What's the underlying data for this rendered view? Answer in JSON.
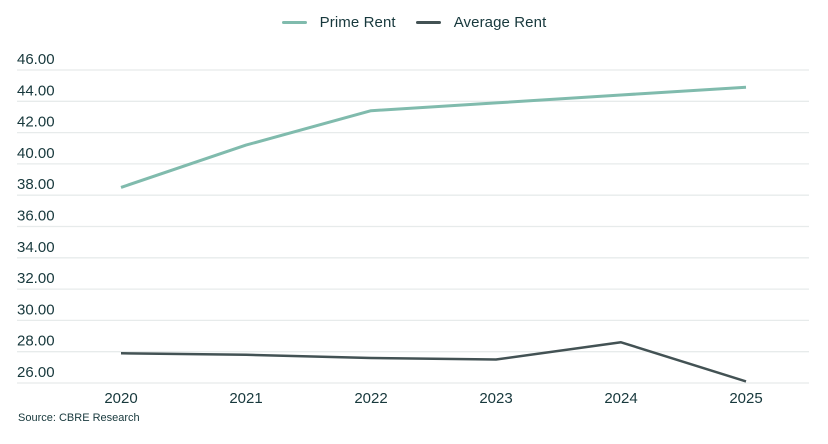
{
  "legend": {
    "items": [
      {
        "label": "Prime Rent",
        "color": "#80BBAD"
      },
      {
        "label": "Average Rent",
        "color": "#435254"
      }
    ]
  },
  "source": {
    "text": "Source: CBRE Research"
  },
  "chart_data": {
    "type": "line",
    "title": "",
    "xlabel": "",
    "ylabel": "",
    "categories": [
      "2020",
      "2021",
      "2022",
      "2023",
      "2024",
      "2025"
    ],
    "series": [
      {
        "name": "Prime Rent",
        "color": "#80BBAD",
        "values": [
          38.5,
          41.2,
          43.4,
          43.9,
          44.4,
          44.9
        ]
      },
      {
        "name": "Average Rent",
        "color": "#435254",
        "values": [
          27.9,
          27.8,
          27.6,
          27.5,
          28.6,
          26.1
        ]
      }
    ],
    "ylim": [
      26,
      46
    ],
    "ytick_step": 2,
    "ytick_decimals": 2,
    "grid": "horizontal",
    "legend_position": "top-center",
    "grid_color": "#e7ebeb",
    "text_color": "#17383c",
    "source": "Source: CBRE Research"
  }
}
